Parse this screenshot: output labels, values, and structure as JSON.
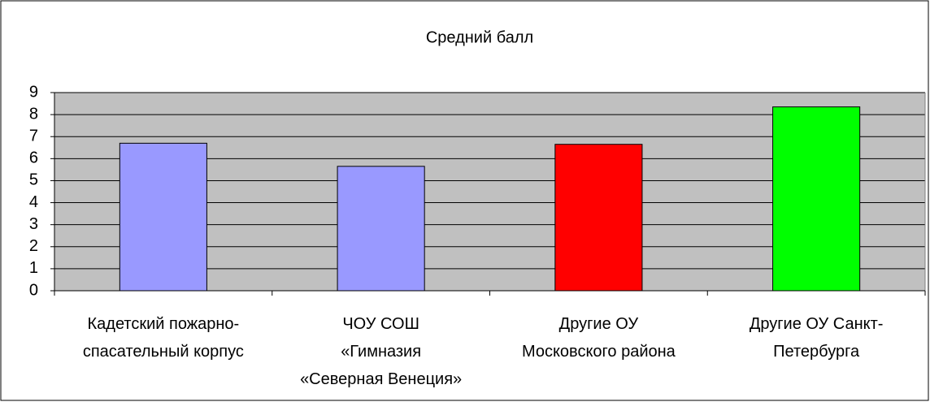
{
  "chart_data": {
    "type": "bar",
    "title": "Средний балл",
    "categories": [
      "Кадетский пожарно-\nспасательный корпус",
      "ЧОУ СОШ\n«Гимназия\n«Северная Венеция»",
      "Другие ОУ\nМосковского района",
      "Другие ОУ Санкт-\nПетербурга"
    ],
    "values": [
      6.7,
      5.65,
      6.65,
      8.35
    ],
    "colors": [
      "#9999ff",
      "#9999ff",
      "#ff0000",
      "#00ff00"
    ],
    "ylim": [
      0,
      9
    ],
    "yticks": [
      0,
      1,
      2,
      3,
      4,
      5,
      6,
      7,
      8,
      9
    ],
    "grid": true
  }
}
